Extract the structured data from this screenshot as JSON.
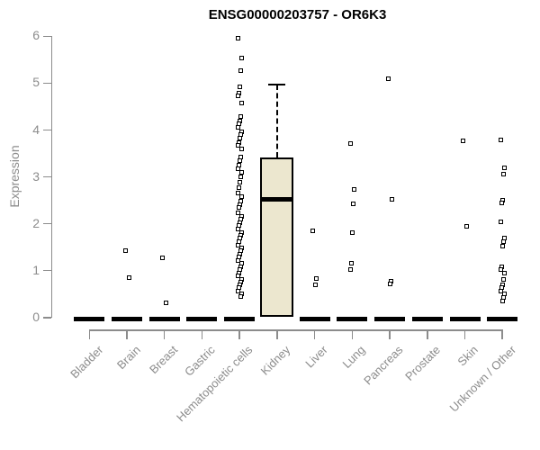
{
  "chart_data": {
    "type": "boxplot",
    "title": "ENSG00000203757 - OR6K3",
    "ylabel": "Expression",
    "xlabel": "",
    "ylim": [
      0,
      6
    ],
    "yticks": [
      0,
      1,
      2,
      3,
      4,
      5,
      6
    ],
    "grid": false,
    "legend": false,
    "categories": [
      "Bladder",
      "Brain",
      "Breast",
      "Gastric",
      "Hematopoietic cells",
      "Kidney",
      "Liver",
      "Lung",
      "Pancreas",
      "Prostate",
      "Skin",
      "Unknown / Other"
    ],
    "boxes": [
      {
        "category": "Bladder",
        "q1": 0,
        "median": 0,
        "q3": 0,
        "whisker_low": 0,
        "whisker_high": 0,
        "outliers": []
      },
      {
        "category": "Brain",
        "q1": 0,
        "median": 0,
        "q3": 0,
        "whisker_low": 0,
        "whisker_high": 0,
        "outliers": [
          1.42,
          0.85
        ]
      },
      {
        "category": "Breast",
        "q1": 0,
        "median": 0,
        "q3": 0,
        "whisker_low": 0,
        "whisker_high": 0,
        "outliers": [
          1.27,
          0.32
        ]
      },
      {
        "category": "Gastric",
        "q1": 0,
        "median": 0,
        "q3": 0,
        "whisker_low": 0,
        "whisker_high": 0,
        "outliers": []
      },
      {
        "category": "Hematopoietic cells",
        "q1": 0,
        "median": 0,
        "q3": 0,
        "whisker_low": 0,
        "whisker_high": 0,
        "outliers": [
          5.95,
          5.53,
          5.27,
          4.92,
          4.78,
          4.73,
          4.57,
          4.28,
          4.2,
          4.13,
          4.05,
          3.97,
          3.9,
          3.82,
          3.74,
          3.67,
          3.59,
          3.42,
          3.34,
          3.26,
          3.17,
          3.09,
          3.0,
          2.88,
          2.78,
          2.65,
          2.57,
          2.49,
          2.41,
          2.34,
          2.23,
          2.16,
          2.09,
          2.03,
          1.96,
          1.89,
          1.82,
          1.76,
          1.69,
          1.62,
          1.55,
          1.49,
          1.42,
          1.35,
          1.29,
          1.22,
          1.15,
          1.08,
          1.02,
          0.95,
          0.88,
          0.82,
          0.75,
          0.69,
          0.63,
          0.57,
          0.5,
          0.44
        ]
      },
      {
        "category": "Kidney",
        "q1": 0.02,
        "median": 2.52,
        "q3": 3.42,
        "whisker_low": 0,
        "whisker_high": 4.97,
        "outliers": []
      },
      {
        "category": "Liver",
        "q1": 0,
        "median": 0,
        "q3": 0,
        "whisker_low": 0,
        "whisker_high": 0,
        "outliers": [
          1.84,
          0.83,
          0.7
        ]
      },
      {
        "category": "Lung",
        "q1": 0,
        "median": 0,
        "q3": 0,
        "whisker_low": 0,
        "whisker_high": 0,
        "outliers": [
          3.72,
          2.73,
          2.42,
          1.82,
          1.15,
          1.03
        ]
      },
      {
        "category": "Pancreas",
        "q1": 0,
        "median": 0,
        "q3": 0,
        "whisker_low": 0,
        "whisker_high": 0,
        "outliers": [
          5.1,
          2.53,
          0.77,
          0.71
        ]
      },
      {
        "category": "Prostate",
        "q1": 0,
        "median": 0,
        "q3": 0,
        "whisker_low": 0,
        "whisker_high": 0,
        "outliers": []
      },
      {
        "category": "Skin",
        "q1": 0,
        "median": 0,
        "q3": 0,
        "whisker_low": 0,
        "whisker_high": 0,
        "outliers": [
          3.77,
          1.94
        ]
      },
      {
        "category": "Unknown / Other",
        "q1": 0,
        "median": 0,
        "q3": 0,
        "whisker_low": 0,
        "whisker_high": 0,
        "outliers": [
          3.79,
          3.19,
          3.05,
          2.5,
          2.44,
          2.05,
          1.69,
          1.61,
          1.53,
          1.08,
          1.02,
          0.95,
          0.81,
          0.7,
          0.63,
          0.57,
          0.5,
          0.43,
          0.36
        ]
      }
    ],
    "colors": {
      "background": "#ffffff",
      "title": "#000000",
      "axis_line": "#8c8c8c",
      "axis_text": "#8c8c8c",
      "box_fill": "#ece7cf",
      "box_border": "#000000",
      "data": "#000000"
    }
  }
}
